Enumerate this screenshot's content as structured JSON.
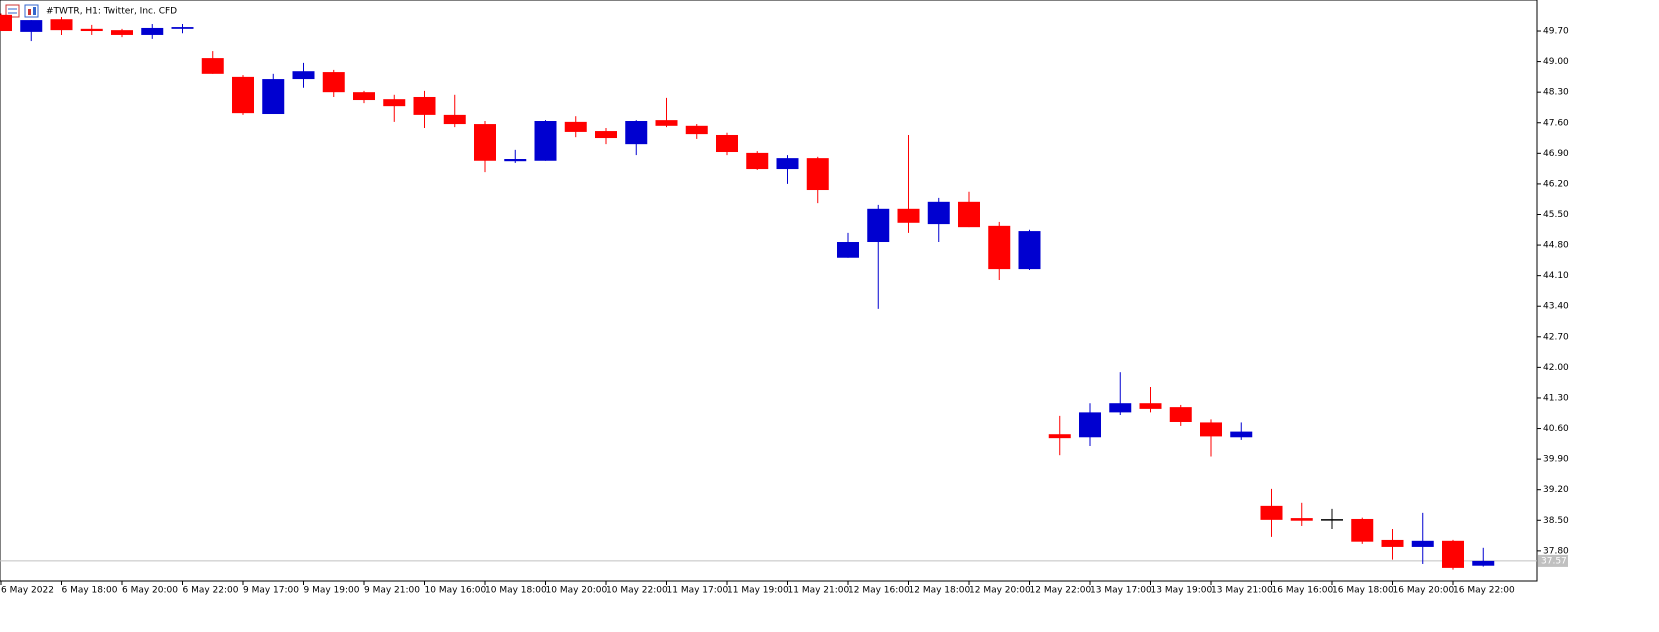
{
  "chart_data": {
    "type": "candlestick",
    "title": "#TWTR, H1:  Twitter, Inc. CFD",
    "categories": [
      "6 May 2022",
      null,
      "6 May 18:00",
      null,
      "6 May 20:00",
      null,
      "6 May 22:00",
      null,
      "9 May 17:00",
      null,
      "9 May 19:00",
      null,
      "9 May 21:00",
      null,
      "10 May 16:00",
      null,
      "10 May 18:00",
      null,
      "10 May 20:00",
      null,
      "10 May 22:00",
      null,
      "11 May 17:00",
      null,
      "11 May 19:00",
      null,
      "11 May 21:00",
      null,
      "12 May 16:00",
      null,
      "12 May 18:00",
      null,
      "12 May 20:00",
      null,
      "12 May 22:00",
      null,
      "13 May 17:00",
      null,
      "13 May 19:00",
      null,
      "13 May 21:00",
      null,
      "16 May 16:00",
      null,
      "16 May 18:00",
      null,
      "16 May 20:00",
      null,
      "16 May 22:00",
      null
    ],
    "open": [
      50.07,
      49.68,
      49.97,
      49.75,
      49.72,
      49.61,
      49.75,
      49.08,
      48.65,
      47.8,
      48.6,
      48.76,
      48.3,
      48.14,
      48.19,
      47.78,
      47.57,
      46.72,
      46.73,
      47.62,
      47.41,
      47.11,
      47.66,
      47.53,
      47.32,
      46.91,
      46.54,
      46.79,
      44.51,
      44.87,
      45.63,
      45.28,
      45.79,
      45.24,
      44.25,
      40.47,
      40.4,
      40.97,
      41.18,
      41.09,
      40.74,
      40.4,
      38.83,
      38.55,
      38.51,
      38.53,
      38.05,
      37.89,
      38.03,
      37.46
    ],
    "high": [
      50.1,
      49.95,
      50.02,
      49.84,
      49.75,
      49.86,
      49.86,
      49.24,
      48.69,
      48.72,
      48.97,
      48.81,
      48.33,
      48.24,
      48.33,
      48.24,
      47.64,
      46.98,
      47.66,
      47.75,
      47.48,
      47.66,
      48.17,
      47.57,
      47.37,
      46.95,
      46.86,
      46.82,
      45.08,
      45.72,
      47.32,
      45.88,
      46.02,
      45.33,
      45.15,
      40.89,
      41.18,
      41.89,
      41.55,
      41.14,
      40.81,
      40.74,
      39.22,
      38.9,
      38.76,
      38.56,
      38.3,
      38.67,
      38.05,
      37.87
    ],
    "low": [
      49.7,
      49.47,
      49.61,
      49.61,
      49.56,
      49.52,
      49.65,
      48.72,
      47.78,
      47.8,
      48.4,
      48.19,
      48.05,
      47.62,
      47.48,
      47.5,
      46.47,
      46.68,
      46.73,
      47.27,
      47.11,
      46.86,
      47.5,
      47.23,
      46.86,
      46.52,
      46.2,
      45.76,
      44.51,
      43.34,
      45.08,
      44.87,
      45.21,
      44.0,
      44.23,
      39.99,
      40.2,
      40.91,
      40.97,
      40.66,
      39.96,
      40.34,
      38.12,
      38.37,
      38.3,
      37.96,
      37.6,
      37.5,
      37.37,
      37.44
    ],
    "close": [
      49.7,
      49.95,
      49.72,
      49.7,
      49.61,
      49.77,
      49.79,
      48.72,
      47.82,
      48.6,
      48.78,
      48.3,
      48.12,
      47.98,
      47.78,
      47.57,
      46.73,
      46.77,
      47.64,
      47.39,
      47.25,
      47.64,
      47.53,
      47.34,
      46.93,
      46.54,
      46.79,
      46.06,
      44.87,
      45.63,
      45.31,
      45.79,
      45.21,
      44.25,
      45.12,
      40.38,
      40.97,
      41.18,
      41.05,
      40.75,
      40.42,
      40.53,
      38.51,
      38.49,
      38.51,
      38.01,
      37.89,
      38.03,
      37.41,
      37.57
    ],
    "up_color": "#0000d0",
    "down_color": "#ff0000",
    "doji_color": "#000000",
    "last_price": 37.57,
    "ylim": [
      37.11,
      50.41
    ],
    "yticks": [
      {
        "value": 49.7,
        "label": "49.70"
      },
      {
        "value": 49,
        "label": "49.00"
      },
      {
        "value": 48.3,
        "label": "48.30"
      },
      {
        "value": 47.6,
        "label": "47.60"
      },
      {
        "value": 46.9,
        "label": "46.90"
      },
      {
        "value": 46.2,
        "label": "46.20"
      },
      {
        "value": 45.5,
        "label": "45.50"
      },
      {
        "value": 44.8,
        "label": "44.80"
      },
      {
        "value": 44.1,
        "label": "44.10"
      },
      {
        "value": 43.4,
        "label": "43.40"
      },
      {
        "value": 42.7,
        "label": "42.70"
      },
      {
        "value": 42,
        "label": "42.00"
      },
      {
        "value": 41.3,
        "label": "41.30"
      },
      {
        "value": 40.6,
        "label": "40.60"
      },
      {
        "value": 39.9,
        "label": "39.90"
      },
      {
        "value": 39.2,
        "label": "39.20"
      },
      {
        "value": 38.5,
        "label": "38.50"
      },
      {
        "value": 37.8,
        "label": "37.80"
      }
    ],
    "grid": false
  }
}
